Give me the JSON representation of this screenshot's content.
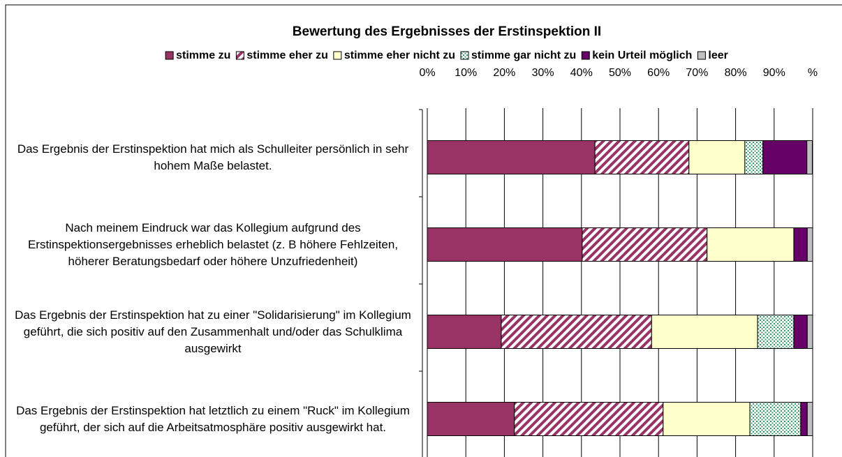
{
  "chart_data": {
    "type": "stacked-bar-horizontal",
    "title": "Bewertung des Ergebnisses der Erstinspektion II",
    "categories": [
      "Das Ergebnis der Erstinspektion hat mich als Schulleiter persönlich in sehr hohem Maße belastet.",
      "Nach meinem Eindruck war das Kollegium aufgrund des Erstinspektionsergebnisses erheblich belastet (z. B höhere Fehlzeiten, höherer Beratungsbedarf oder höhere Unzufriedenheit)",
      "Das Ergebnis der Erstinspektion hat zu einer \"Solidarisierung\" im Kollegium geführt, die sich positiv auf den Zusammenhalt und/oder das Schulklima ausgewirkt",
      "Das Ergebnis der Erstinspektion hat letztlich zu einem \"Ruck\" im Kollegium geführt, der sich auf die Arbeitsatmosphäre positiv ausgewirkt hat."
    ],
    "series": [
      {
        "name": "stimme zu",
        "color": "#993366",
        "values": [
          43.5,
          40.2,
          19.2,
          22.6
        ]
      },
      {
        "name": "stimme eher zu",
        "color": "#993366",
        "pattern": "stripes",
        "values": [
          24.4,
          32.4,
          39.0,
          38.6
        ]
      },
      {
        "name": "stimme eher nicht zu",
        "color": "#ffffcc",
        "values": [
          14.5,
          22.5,
          27.5,
          22.5
        ]
      },
      {
        "name": "stimme gar nicht zu",
        "color": "#339966",
        "pattern": "dots",
        "values": [
          4.7,
          0,
          9.4,
          13.2
        ]
      },
      {
        "name": "kein Urteil möglich",
        "color": "#660066",
        "values": [
          11.4,
          3.5,
          3.5,
          1.7
        ]
      },
      {
        "name": "leer",
        "color": "#c0c0c0",
        "values": [
          1.4,
          1.4,
          1.4,
          1.4
        ]
      }
    ],
    "xlim": [
      0,
      100
    ],
    "xticks": [
      {
        "value": 0,
        "label": "0%"
      },
      {
        "value": 10,
        "label": "10%"
      },
      {
        "value": 20,
        "label": "20%"
      },
      {
        "value": 30,
        "label": "30%"
      },
      {
        "value": 40,
        "label": "40%"
      },
      {
        "value": 50,
        "label": "50%"
      },
      {
        "value": 60,
        "label": "60%"
      },
      {
        "value": 70,
        "label": "70%"
      },
      {
        "value": 80,
        "label": "80%"
      },
      {
        "value": 90,
        "label": "90%"
      },
      {
        "value": 100,
        "label": "%"
      }
    ],
    "grid": true,
    "legend": "top"
  }
}
